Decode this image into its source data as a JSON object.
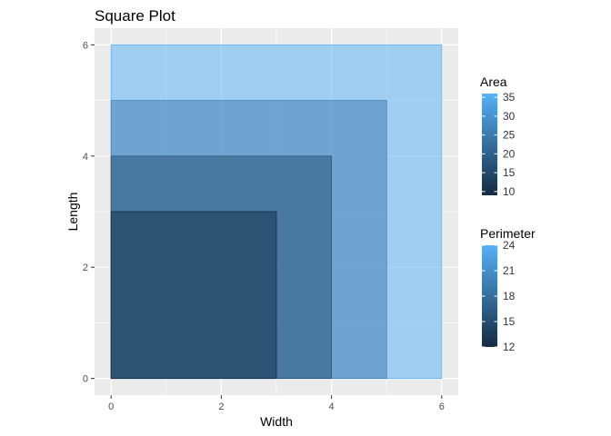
{
  "chart_data": {
    "type": "rect",
    "title": "Square Plot",
    "xlabel": "Width",
    "ylabel": "Length",
    "xlim": [
      -0.3,
      6.3
    ],
    "ylim": [
      -0.3,
      6.3
    ],
    "x_ticks": [
      0,
      2,
      4,
      6
    ],
    "y_ticks": [
      0,
      2,
      4,
      6
    ],
    "grid": true,
    "legend_position": "right",
    "squares": [
      {
        "width": 6,
        "length": 6,
        "area": 36,
        "perimeter": 24
      },
      {
        "width": 5,
        "length": 5,
        "area": 25,
        "perimeter": 20
      },
      {
        "width": 4,
        "length": 4,
        "area": 16,
        "perimeter": 16
      },
      {
        "width": 3,
        "length": 3,
        "area": 9,
        "perimeter": 12
      }
    ],
    "legends": [
      {
        "title": "Area",
        "range": [
          9,
          36
        ],
        "ticks": [
          10,
          15,
          20,
          25,
          30,
          35
        ]
      },
      {
        "title": "Perimeter",
        "range": [
          12,
          24
        ],
        "ticks": [
          12,
          15,
          18,
          21,
          24
        ]
      }
    ],
    "colors": {
      "low": "#132B43",
      "high": "#56B1F7",
      "panel": "#EBEBEB",
      "grid": "#FFFFFF"
    }
  }
}
